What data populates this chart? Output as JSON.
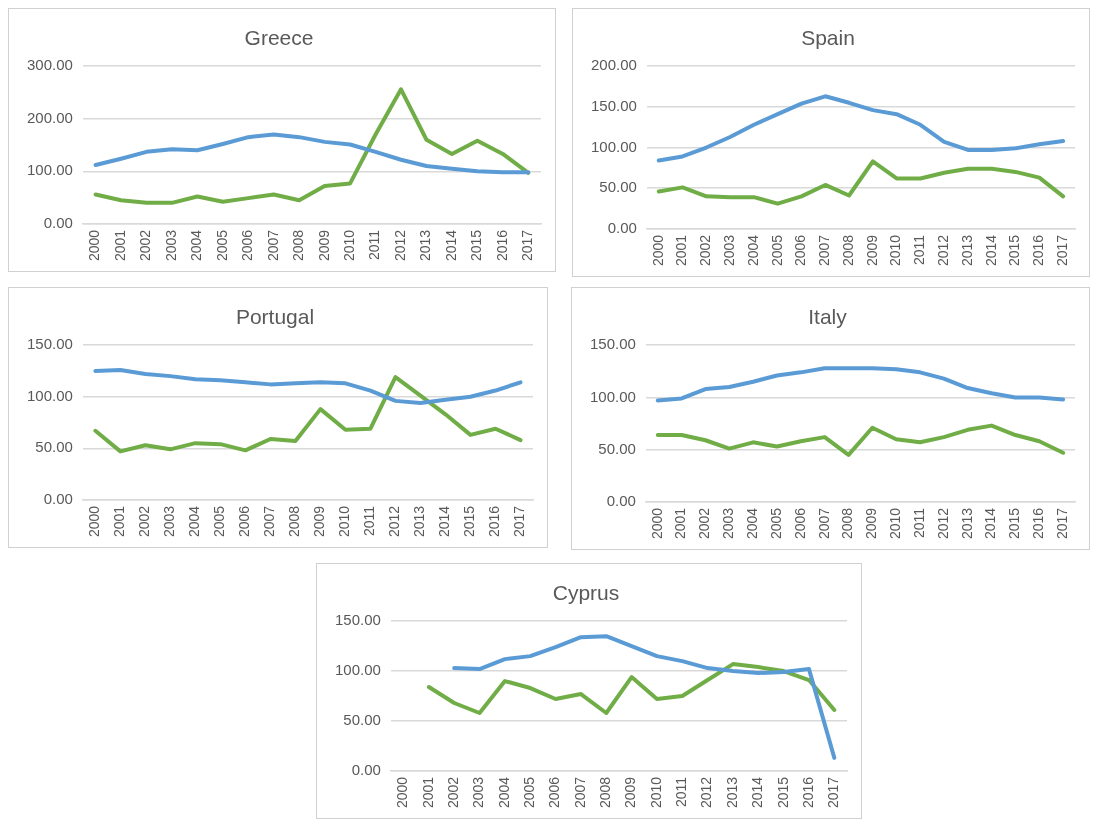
{
  "chart_data": [
    {
      "type": "line",
      "title": "Greece",
      "categories": [
        "2000",
        "2001",
        "2002",
        "2003",
        "2004",
        "2005",
        "2006",
        "2007",
        "2008",
        "2009",
        "2010",
        "2011",
        "2012",
        "2013",
        "2014",
        "2015",
        "2016",
        "2017"
      ],
      "series": [
        {
          "color": "#5b9bd5",
          "values": [
            112,
            124,
            137,
            142,
            140,
            152,
            165,
            170,
            165,
            156,
            151,
            137,
            122,
            110,
            105,
            100,
            98,
            98
          ]
        },
        {
          "color": "#70ad47",
          "values": [
            56,
            45,
            40,
            40,
            52,
            42,
            49,
            56,
            45,
            72,
            77,
            170,
            256,
            160,
            133,
            158,
            133,
            97
          ]
        }
      ],
      "ylim": [
        0,
        300
      ],
      "yticks": [
        {
          "value": 0,
          "label": "0.00"
        },
        {
          "value": 100,
          "label": "100.00"
        },
        {
          "value": 200,
          "label": "200.00"
        },
        {
          "value": 300,
          "label": "300.00"
        }
      ],
      "grid": "y",
      "marker": "none"
    },
    {
      "type": "line",
      "title": "Spain",
      "categories": [
        "2000",
        "2001",
        "2002",
        "2003",
        "2004",
        "2005",
        "2006",
        "2007",
        "2008",
        "2009",
        "2010",
        "2011",
        "2012",
        "2013",
        "2014",
        "2015",
        "2016",
        "2017"
      ],
      "series": [
        {
          "color": "#5b9bd5",
          "values": [
            84,
            89,
            100,
            113,
            128,
            141,
            154,
            163,
            155,
            146,
            141,
            128,
            107,
            97,
            97,
            99,
            104,
            108
          ]
        },
        {
          "color": "#70ad47",
          "values": [
            46,
            51,
            40,
            39,
            39,
            31,
            40,
            54,
            41,
            83,
            62,
            62,
            69,
            74,
            74,
            70,
            63,
            40
          ]
        }
      ],
      "ylim": [
        0,
        200
      ],
      "yticks": [
        {
          "value": 0,
          "label": "0.00"
        },
        {
          "value": 50,
          "label": "50.00"
        },
        {
          "value": 100,
          "label": "100.00"
        },
        {
          "value": 150,
          "label": "150.00"
        },
        {
          "value": 200,
          "label": "200.00"
        }
      ],
      "grid": "y",
      "marker": "none"
    },
    {
      "type": "line",
      "title": "Portugal",
      "categories": [
        "2000",
        "2001",
        "2002",
        "2003",
        "2004",
        "2005",
        "2006",
        "2007",
        "2008",
        "2009",
        "2010",
        "2011",
        "2012",
        "2013",
        "2014",
        "2015",
        "2016",
        "2017"
      ],
      "series": [
        {
          "color": "#5b9bd5",
          "values": [
            125,
            126,
            122,
            120,
            117,
            116,
            114,
            112,
            113,
            114,
            113,
            106,
            96,
            94,
            97,
            100,
            106,
            114
          ]
        },
        {
          "color": "#70ad47",
          "values": [
            67,
            47,
            53,
            49,
            55,
            54,
            48,
            59,
            57,
            88,
            68,
            69,
            119,
            101,
            83,
            63,
            69,
            58
          ]
        }
      ],
      "ylim": [
        0,
        150
      ],
      "yticks": [
        {
          "value": 0,
          "label": "0.00"
        },
        {
          "value": 50,
          "label": "50.00"
        },
        {
          "value": 100,
          "label": "100.00"
        },
        {
          "value": 150,
          "label": "150.00"
        }
      ],
      "grid": "y",
      "marker": "none"
    },
    {
      "type": "line",
      "title": "Italy",
      "categories": [
        "2000",
        "2001",
        "2002",
        "2003",
        "2004",
        "2005",
        "2006",
        "2007",
        "2008",
        "2009",
        "2010",
        "2011",
        "2012",
        "2013",
        "2014",
        "2015",
        "2016",
        "2017"
      ],
      "series": [
        {
          "color": "#5b9bd5",
          "values": [
            97,
            99,
            108,
            110,
            115,
            121,
            124,
            128,
            128,
            128,
            127,
            124,
            118,
            109,
            104,
            100,
            100,
            98
          ]
        },
        {
          "color": "#70ad47",
          "values": [
            64,
            64,
            59,
            51,
            57,
            53,
            58,
            62,
            45,
            71,
            60,
            57,
            62,
            69,
            73,
            64,
            58,
            47
          ]
        }
      ],
      "ylim": [
        0,
        150
      ],
      "yticks": [
        {
          "value": 0,
          "label": "0.00"
        },
        {
          "value": 50,
          "label": "50.00"
        },
        {
          "value": 100,
          "label": "100.00"
        },
        {
          "value": 150,
          "label": "150.00"
        }
      ],
      "grid": "y",
      "marker": "none"
    },
    {
      "type": "line",
      "title": "Cyprus",
      "categories": [
        "2000",
        "2001",
        "2002",
        "2003",
        "2004",
        "2005",
        "2006",
        "2007",
        "2008",
        "2009",
        "2010",
        "2011",
        "2012",
        "2013",
        "2014",
        "2015",
        "2016",
        "2017"
      ],
      "series": [
        {
          "color": "#5b9bd5",
          "values": [
            null,
            null,
            103,
            102,
            112,
            115,
            124,
            134,
            135,
            125,
            115,
            110,
            103,
            100,
            98,
            99,
            102,
            13
          ]
        },
        {
          "color": "#70ad47",
          "values": [
            null,
            84,
            68,
            58,
            90,
            83,
            72,
            77,
            58,
            94,
            72,
            75,
            91,
            107,
            104,
            100,
            91,
            61
          ]
        }
      ],
      "ylim": [
        0,
        150
      ],
      "yticks": [
        {
          "value": 0,
          "label": "0.00"
        },
        {
          "value": 50,
          "label": "50.00"
        },
        {
          "value": 100,
          "label": "100.00"
        },
        {
          "value": 150,
          "label": "150.00"
        }
      ],
      "grid": "y",
      "marker": "none"
    }
  ]
}
